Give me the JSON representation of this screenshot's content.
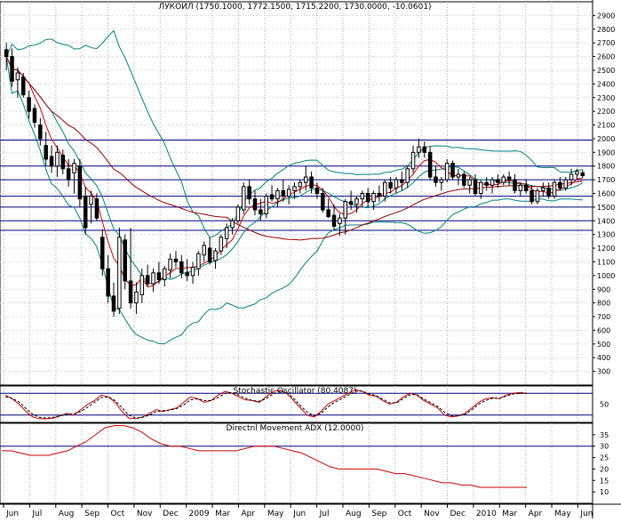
{
  "chart_data": {
    "type": "candlestick",
    "title": "ЛУКОЙЛ (1750.1000, 1772.1500, 1715.2200, 1730.0000, -10.0601)",
    "x_labels": [
      "Jun",
      "Jul",
      "Aug",
      "Sep",
      "Oct",
      "Nov",
      "Dec",
      "2009",
      "Mar",
      "Apr",
      "May",
      "Jun",
      "Jul",
      "Aug",
      "Sep",
      "Oct",
      "Nov",
      "Dec",
      "2010",
      "Mar",
      "Apr",
      "May",
      "Jun"
    ],
    "price": {
      "ylim": [
        200,
        3000
      ],
      "ticks": [
        300,
        400,
        500,
        600,
        700,
        800,
        900,
        1000,
        1100,
        1200,
        1300,
        1400,
        1500,
        1600,
        1700,
        1800,
        1900,
        2000,
        2100,
        2200,
        2300,
        2400,
        2500,
        2600,
        2700,
        2800,
        2900
      ],
      "horizontal_levels": [
        1330,
        1400,
        1500,
        1580,
        1700,
        1800,
        1990
      ],
      "candles": [
        {
          "o": 2650,
          "h": 2700,
          "l": 2500,
          "c": 2600
        },
        {
          "o": 2600,
          "h": 2660,
          "l": 2380,
          "c": 2420
        },
        {
          "o": 2430,
          "h": 2520,
          "l": 2300,
          "c": 2480
        },
        {
          "o": 2450,
          "h": 2480,
          "l": 2300,
          "c": 2320
        },
        {
          "o": 2300,
          "h": 2350,
          "l": 2150,
          "c": 2200
        },
        {
          "o": 2220,
          "h": 2250,
          "l": 2080,
          "c": 2120
        },
        {
          "o": 2100,
          "h": 2150,
          "l": 1950,
          "c": 2000
        },
        {
          "o": 1950,
          "h": 2050,
          "l": 1800,
          "c": 1850
        },
        {
          "o": 1870,
          "h": 1950,
          "l": 1750,
          "c": 1800
        },
        {
          "o": 1800,
          "h": 1950,
          "l": 1720,
          "c": 1900
        },
        {
          "o": 1880,
          "h": 1920,
          "l": 1740,
          "c": 1780
        },
        {
          "o": 1780,
          "h": 1850,
          "l": 1650,
          "c": 1700
        },
        {
          "o": 1750,
          "h": 1850,
          "l": 1600,
          "c": 1820
        },
        {
          "o": 1800,
          "h": 1850,
          "l": 1500,
          "c": 1560
        },
        {
          "o": 1580,
          "h": 1650,
          "l": 1300,
          "c": 1350
        },
        {
          "o": 1520,
          "h": 1620,
          "l": 1380,
          "c": 1580
        },
        {
          "o": 1560,
          "h": 1600,
          "l": 1400,
          "c": 1420
        },
        {
          "o": 1280,
          "h": 1340,
          "l": 1000,
          "c": 1050
        },
        {
          "o": 1050,
          "h": 1150,
          "l": 800,
          "c": 850
        },
        {
          "o": 850,
          "h": 950,
          "l": 700,
          "c": 740
        },
        {
          "o": 760,
          "h": 1350,
          "l": 720,
          "c": 1280
        },
        {
          "o": 1260,
          "h": 1300,
          "l": 900,
          "c": 960
        },
        {
          "o": 960,
          "h": 1350,
          "l": 760,
          "c": 800
        },
        {
          "o": 800,
          "h": 950,
          "l": 720,
          "c": 880
        },
        {
          "o": 860,
          "h": 1050,
          "l": 800,
          "c": 1000
        },
        {
          "o": 1000,
          "h": 1080,
          "l": 920,
          "c": 940
        },
        {
          "o": 940,
          "h": 1050,
          "l": 880,
          "c": 1020
        },
        {
          "o": 1020,
          "h": 1100,
          "l": 940,
          "c": 970
        },
        {
          "o": 970,
          "h": 1070,
          "l": 920,
          "c": 1050
        },
        {
          "o": 1040,
          "h": 1160,
          "l": 980,
          "c": 1120
        },
        {
          "o": 1120,
          "h": 1180,
          "l": 1060,
          "c": 1100
        },
        {
          "o": 1100,
          "h": 1150,
          "l": 980,
          "c": 1020
        },
        {
          "o": 1020,
          "h": 1120,
          "l": 960,
          "c": 1000
        },
        {
          "o": 1000,
          "h": 1100,
          "l": 940,
          "c": 1060
        },
        {
          "o": 1050,
          "h": 1180,
          "l": 1000,
          "c": 1160
        },
        {
          "o": 1150,
          "h": 1250,
          "l": 1100,
          "c": 1220
        },
        {
          "o": 1200,
          "h": 1280,
          "l": 1080,
          "c": 1100
        },
        {
          "o": 1110,
          "h": 1200,
          "l": 1050,
          "c": 1180
        },
        {
          "o": 1180,
          "h": 1300,
          "l": 1150,
          "c": 1280
        },
        {
          "o": 1270,
          "h": 1380,
          "l": 1200,
          "c": 1350
        },
        {
          "o": 1350,
          "h": 1420,
          "l": 1300,
          "c": 1400
        },
        {
          "o": 1400,
          "h": 1520,
          "l": 1380,
          "c": 1500
        },
        {
          "o": 1480,
          "h": 1680,
          "l": 1450,
          "c": 1650
        },
        {
          "o": 1650,
          "h": 1700,
          "l": 1520,
          "c": 1560
        },
        {
          "o": 1560,
          "h": 1620,
          "l": 1440,
          "c": 1480
        },
        {
          "o": 1480,
          "h": 1560,
          "l": 1400,
          "c": 1450
        },
        {
          "o": 1450,
          "h": 1600,
          "l": 1420,
          "c": 1580
        },
        {
          "o": 1590,
          "h": 1660,
          "l": 1540,
          "c": 1560
        },
        {
          "o": 1560,
          "h": 1640,
          "l": 1500,
          "c": 1620
        },
        {
          "o": 1620,
          "h": 1700,
          "l": 1540,
          "c": 1580
        },
        {
          "o": 1580,
          "h": 1660,
          "l": 1520,
          "c": 1630
        },
        {
          "o": 1620,
          "h": 1680,
          "l": 1560,
          "c": 1650
        },
        {
          "o": 1650,
          "h": 1700,
          "l": 1600,
          "c": 1680
        },
        {
          "o": 1680,
          "h": 1800,
          "l": 1620,
          "c": 1720
        },
        {
          "o": 1720,
          "h": 1760,
          "l": 1600,
          "c": 1640
        },
        {
          "o": 1640,
          "h": 1680,
          "l": 1560,
          "c": 1600
        },
        {
          "o": 1600,
          "h": 1640,
          "l": 1460,
          "c": 1480
        },
        {
          "o": 1480,
          "h": 1560,
          "l": 1420,
          "c": 1430
        },
        {
          "o": 1440,
          "h": 1520,
          "l": 1330,
          "c": 1360
        },
        {
          "o": 1380,
          "h": 1450,
          "l": 1290,
          "c": 1420
        },
        {
          "o": 1420,
          "h": 1560,
          "l": 1300,
          "c": 1540
        },
        {
          "o": 1540,
          "h": 1620,
          "l": 1480,
          "c": 1520
        },
        {
          "o": 1520,
          "h": 1580,
          "l": 1460,
          "c": 1560
        },
        {
          "o": 1560,
          "h": 1620,
          "l": 1500,
          "c": 1600
        },
        {
          "o": 1600,
          "h": 1640,
          "l": 1500,
          "c": 1540
        },
        {
          "o": 1540,
          "h": 1620,
          "l": 1480,
          "c": 1600
        },
        {
          "o": 1600,
          "h": 1660,
          "l": 1540,
          "c": 1580
        },
        {
          "o": 1580,
          "h": 1700,
          "l": 1540,
          "c": 1680
        },
        {
          "o": 1680,
          "h": 1720,
          "l": 1600,
          "c": 1640
        },
        {
          "o": 1640,
          "h": 1720,
          "l": 1600,
          "c": 1700
        },
        {
          "o": 1700,
          "h": 1760,
          "l": 1620,
          "c": 1680
        },
        {
          "o": 1680,
          "h": 1800,
          "l": 1640,
          "c": 1780
        },
        {
          "o": 1780,
          "h": 1950,
          "l": 1750,
          "c": 1900
        },
        {
          "o": 1900,
          "h": 2000,
          "l": 1860,
          "c": 1940
        },
        {
          "o": 1940,
          "h": 1980,
          "l": 1860,
          "c": 1900
        },
        {
          "o": 1900,
          "h": 1940,
          "l": 1700,
          "c": 1720
        },
        {
          "o": 1720,
          "h": 1800,
          "l": 1650,
          "c": 1680
        },
        {
          "o": 1680,
          "h": 1720,
          "l": 1620,
          "c": 1700
        },
        {
          "o": 1700,
          "h": 1850,
          "l": 1680,
          "c": 1820
        },
        {
          "o": 1820,
          "h": 1840,
          "l": 1700,
          "c": 1720
        },
        {
          "o": 1720,
          "h": 1780,
          "l": 1660,
          "c": 1740
        },
        {
          "o": 1740,
          "h": 1760,
          "l": 1640,
          "c": 1660
        },
        {
          "o": 1660,
          "h": 1720,
          "l": 1600,
          "c": 1700
        },
        {
          "o": 1700,
          "h": 1740,
          "l": 1580,
          "c": 1600
        },
        {
          "o": 1600,
          "h": 1700,
          "l": 1560,
          "c": 1680
        },
        {
          "o": 1680,
          "h": 1720,
          "l": 1620,
          "c": 1660
        },
        {
          "o": 1660,
          "h": 1720,
          "l": 1600,
          "c": 1700
        },
        {
          "o": 1700,
          "h": 1740,
          "l": 1640,
          "c": 1680
        },
        {
          "o": 1680,
          "h": 1740,
          "l": 1660,
          "c": 1720
        },
        {
          "o": 1720,
          "h": 1760,
          "l": 1660,
          "c": 1700
        },
        {
          "o": 1700,
          "h": 1740,
          "l": 1600,
          "c": 1620
        },
        {
          "o": 1620,
          "h": 1680,
          "l": 1580,
          "c": 1660
        },
        {
          "o": 1660,
          "h": 1700,
          "l": 1600,
          "c": 1620
        },
        {
          "o": 1620,
          "h": 1660,
          "l": 1520,
          "c": 1540
        },
        {
          "o": 1540,
          "h": 1640,
          "l": 1520,
          "c": 1620
        },
        {
          "o": 1620,
          "h": 1680,
          "l": 1580,
          "c": 1640
        },
        {
          "o": 1640,
          "h": 1680,
          "l": 1560,
          "c": 1580
        },
        {
          "o": 1580,
          "h": 1700,
          "l": 1560,
          "c": 1680
        },
        {
          "o": 1680,
          "h": 1720,
          "l": 1620,
          "c": 1640
        },
        {
          "o": 1640,
          "h": 1720,
          "l": 1620,
          "c": 1700
        },
        {
          "o": 1700,
          "h": 1780,
          "l": 1660,
          "c": 1740
        },
        {
          "o": 1740,
          "h": 1780,
          "l": 1700,
          "c": 1760
        },
        {
          "o": 1750,
          "h": 1772,
          "l": 1715,
          "c": 1730
        }
      ]
    },
    "stochastic": {
      "title": "Stochastic Oscillator (80.4087)",
      "ylim": [
        0,
        100
      ],
      "ticks": [
        50
      ],
      "levels": [
        20,
        80
      ],
      "k": [
        75,
        65,
        50,
        30,
        15,
        10,
        10,
        12,
        18,
        25,
        20,
        35,
        50,
        60,
        75,
        70,
        55,
        30,
        12,
        10,
        15,
        25,
        35,
        30,
        35,
        40,
        55,
        70,
        65,
        55,
        60,
        75,
        85,
        80,
        70,
        62,
        60,
        55,
        70,
        85,
        88,
        80,
        60,
        40,
        20,
        15,
        30,
        50,
        60,
        70,
        80,
        90,
        85,
        75,
        72,
        60,
        50,
        55,
        70,
        80,
        75,
        60,
        50,
        40,
        20,
        15,
        18,
        25,
        40,
        55,
        65,
        68,
        65,
        75,
        80,
        82,
        80
      ],
      "d": [
        70,
        66,
        56,
        38,
        22,
        14,
        12,
        14,
        18,
        22,
        24,
        30,
        42,
        55,
        68,
        70,
        60,
        40,
        20,
        12,
        14,
        20,
        30,
        32,
        34,
        38,
        48,
        62,
        65,
        60,
        60,
        68,
        80,
        82,
        75,
        66,
        60,
        58,
        65,
        78,
        85,
        82,
        66,
        46,
        28,
        18,
        25,
        42,
        55,
        65,
        75,
        85,
        86,
        78,
        74,
        64,
        54,
        54,
        65,
        76,
        76,
        64,
        54,
        44,
        28,
        18,
        18,
        22,
        35,
        50,
        60,
        66,
        66,
        72,
        78,
        80,
        80
      ]
    },
    "adx": {
      "title": "Directnl Movement ADX (12.0000)",
      "ylim": [
        5,
        40
      ],
      "ticks": [
        10,
        15,
        20,
        25,
        30,
        35
      ],
      "levels": [
        30
      ],
      "values": [
        28,
        28,
        27,
        26,
        26,
        26,
        27,
        28,
        30,
        32,
        35,
        38,
        39,
        39,
        38,
        36,
        33,
        31,
        30,
        30,
        29,
        28,
        28,
        28,
        28,
        28,
        29,
        30,
        30,
        30,
        29,
        28,
        27,
        25,
        23,
        21,
        20,
        20,
        20,
        20,
        20,
        19,
        18,
        18,
        17,
        16,
        15,
        14,
        14,
        13,
        13,
        12,
        12,
        12,
        12,
        12,
        12
      ]
    }
  }
}
